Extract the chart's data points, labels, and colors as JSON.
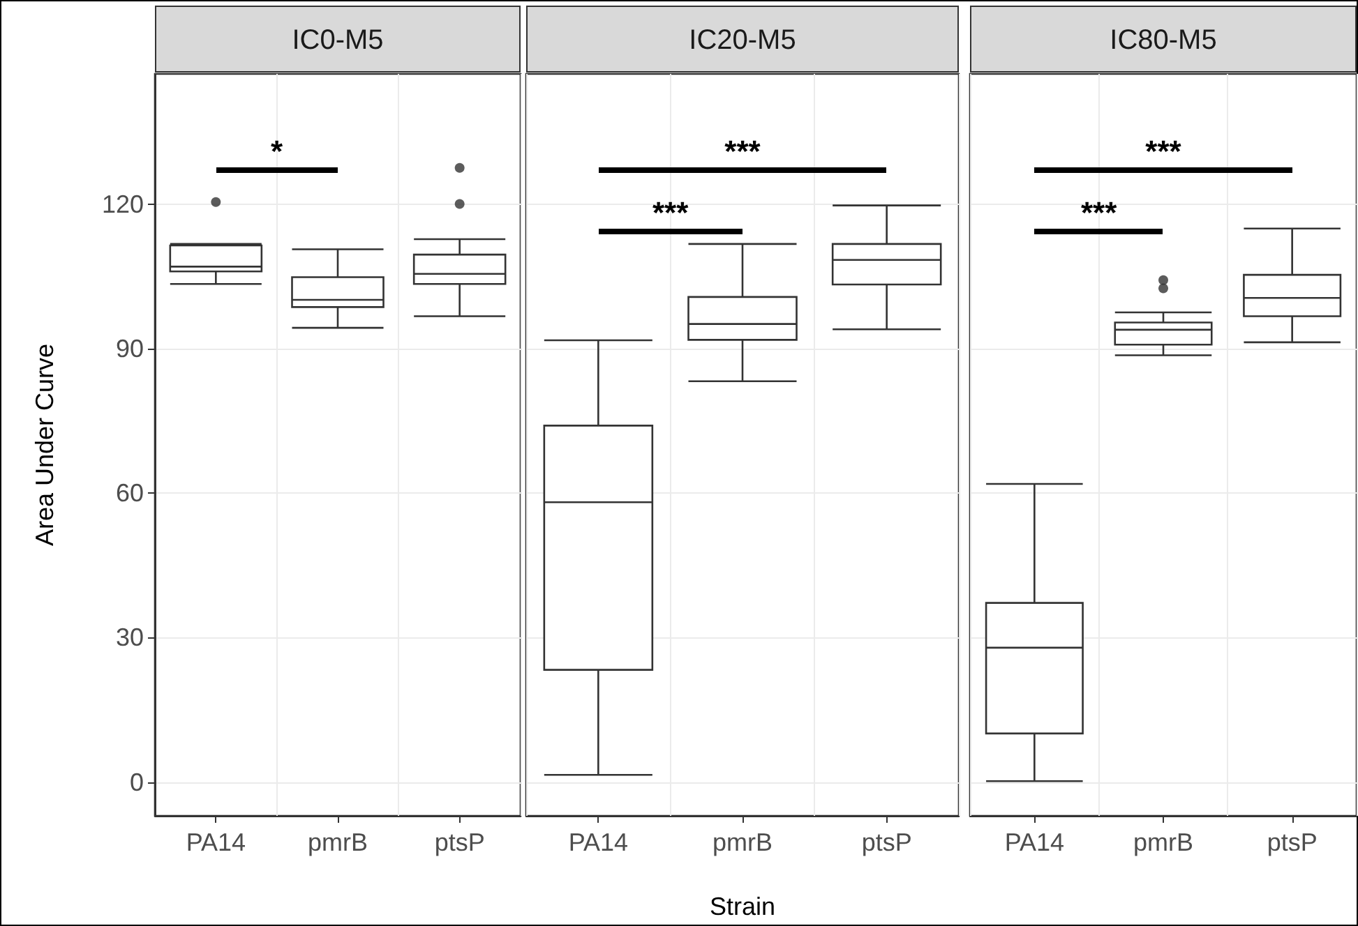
{
  "chart_data": [
    {
      "type": "box",
      "title": "IC0-M5",
      "ylabel": "Area Under Curve",
      "categories": [
        "PA14",
        "pmrB",
        "ptsP"
      ],
      "ylim": [
        -7,
        147
      ],
      "yticks": [
        0,
        30,
        60,
        90,
        120
      ],
      "grid": true,
      "color": "#333333",
      "boxes": [
        {
          "low": 103.4,
          "q1": 106,
          "median": 107,
          "q3": 111.4,
          "high": 111.7,
          "outliers": [
            120.4
          ]
        },
        {
          "low": 94.3,
          "q1": 98.6,
          "median": 100.1,
          "q3": 104.8,
          "high": 110.6
        },
        {
          "low": 96.7,
          "q1": 103.4,
          "median": 105.5,
          "q3": 109.5,
          "high": 112.7,
          "outliers": [
            120.0,
            127.5
          ]
        }
      ],
      "annotations": [
        "*"
      ]
    },
    {
      "type": "box",
      "title": "IC20-M5",
      "xlabel": "Strain",
      "categories": [
        "PA14",
        "pmrB",
        "ptsP"
      ],
      "ylim": [
        -7,
        147
      ],
      "yticks": [
        0,
        30,
        60,
        90,
        120
      ],
      "grid": true,
      "tick_labels": "x",
      "color": "#333333",
      "boxes": [
        {
          "low": 1.5,
          "q1": 23.3,
          "median": 58.1,
          "q3": 74.0,
          "high": 91.7
        },
        {
          "low": 83.2,
          "q1": 91.8,
          "median": 95.1,
          "q3": 100.7,
          "high": 111.7
        },
        {
          "low": 94.0,
          "q1": 103.3,
          "median": 108.4,
          "q3": 111.7,
          "high": 119.7
        }
      ],
      "annotations": [
        "***",
        "***"
      ]
    },
    {
      "type": "box",
      "title": "IC80-M5",
      "categories": [
        "PA14",
        "pmrB",
        "ptsP"
      ],
      "ylim": [
        -7,
        147
      ],
      "yticks": [
        0,
        30,
        60,
        90,
        120
      ],
      "grid": true,
      "tick_labels": "x",
      "color": "#333333",
      "boxes": [
        {
          "low": 0.2,
          "q1": 10.1,
          "median": 27.9,
          "q3": 37.2,
          "high": 61.9
        },
        {
          "low": 88.6,
          "q1": 90.8,
          "median": 93.9,
          "q3": 95.4,
          "high": 97.5,
          "outliers": [
            102.5,
            104.2
          ]
        },
        {
          "low": 91.3,
          "q1": 96.7,
          "median": 100.5,
          "q3": 105.3,
          "high": 114.9
        }
      ],
      "annotations": [
        "***",
        "***"
      ]
    }
  ]
}
